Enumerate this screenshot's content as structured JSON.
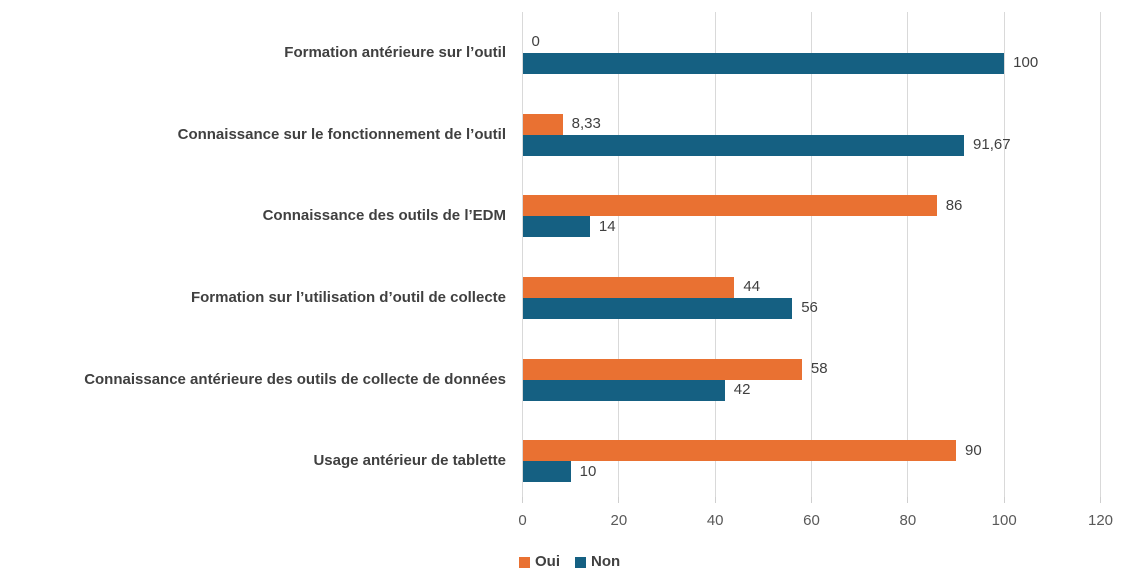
{
  "chart_data": {
    "type": "bar",
    "orientation": "horizontal",
    "title": "",
    "xlabel": "",
    "ylabel": "",
    "xlim": [
      0,
      120
    ],
    "xticks": [
      0,
      20,
      40,
      60,
      80,
      100,
      120
    ],
    "grid": "vertical",
    "legend_position": "bottom-left",
    "categories": [
      "Formation antérieure sur l’outil",
      "Connaissance sur le fonctionnement de l’outil",
      "Connaissance des outils de l’EDM",
      "Formation sur l’utilisation d’outil de collecte",
      "Connaissance antérieure des outils de collecte de données",
      "Usage antérieur de tablette"
    ],
    "series": [
      {
        "name": "Oui",
        "color": "#E97132",
        "values": [
          0,
          8.33,
          86,
          44,
          58,
          90
        ],
        "labels": [
          "0",
          "8,33",
          "86",
          "44",
          "58",
          "90"
        ]
      },
      {
        "name": "Non",
        "color": "#156082",
        "values": [
          100,
          91.67,
          14,
          56,
          42,
          10
        ],
        "labels": [
          "100",
          "91,67",
          "14",
          "56",
          "42",
          "10"
        ]
      }
    ]
  },
  "legend": {
    "items": [
      {
        "label": "Oui",
        "color": "#E97132"
      },
      {
        "label": "Non",
        "color": "#156082"
      }
    ]
  },
  "colors": {
    "background": "#ffffff",
    "gridline": "#d9d9d9",
    "axis_text": "#595959",
    "label_text": "#404040",
    "oui": "#E97132",
    "non": "#156082"
  }
}
